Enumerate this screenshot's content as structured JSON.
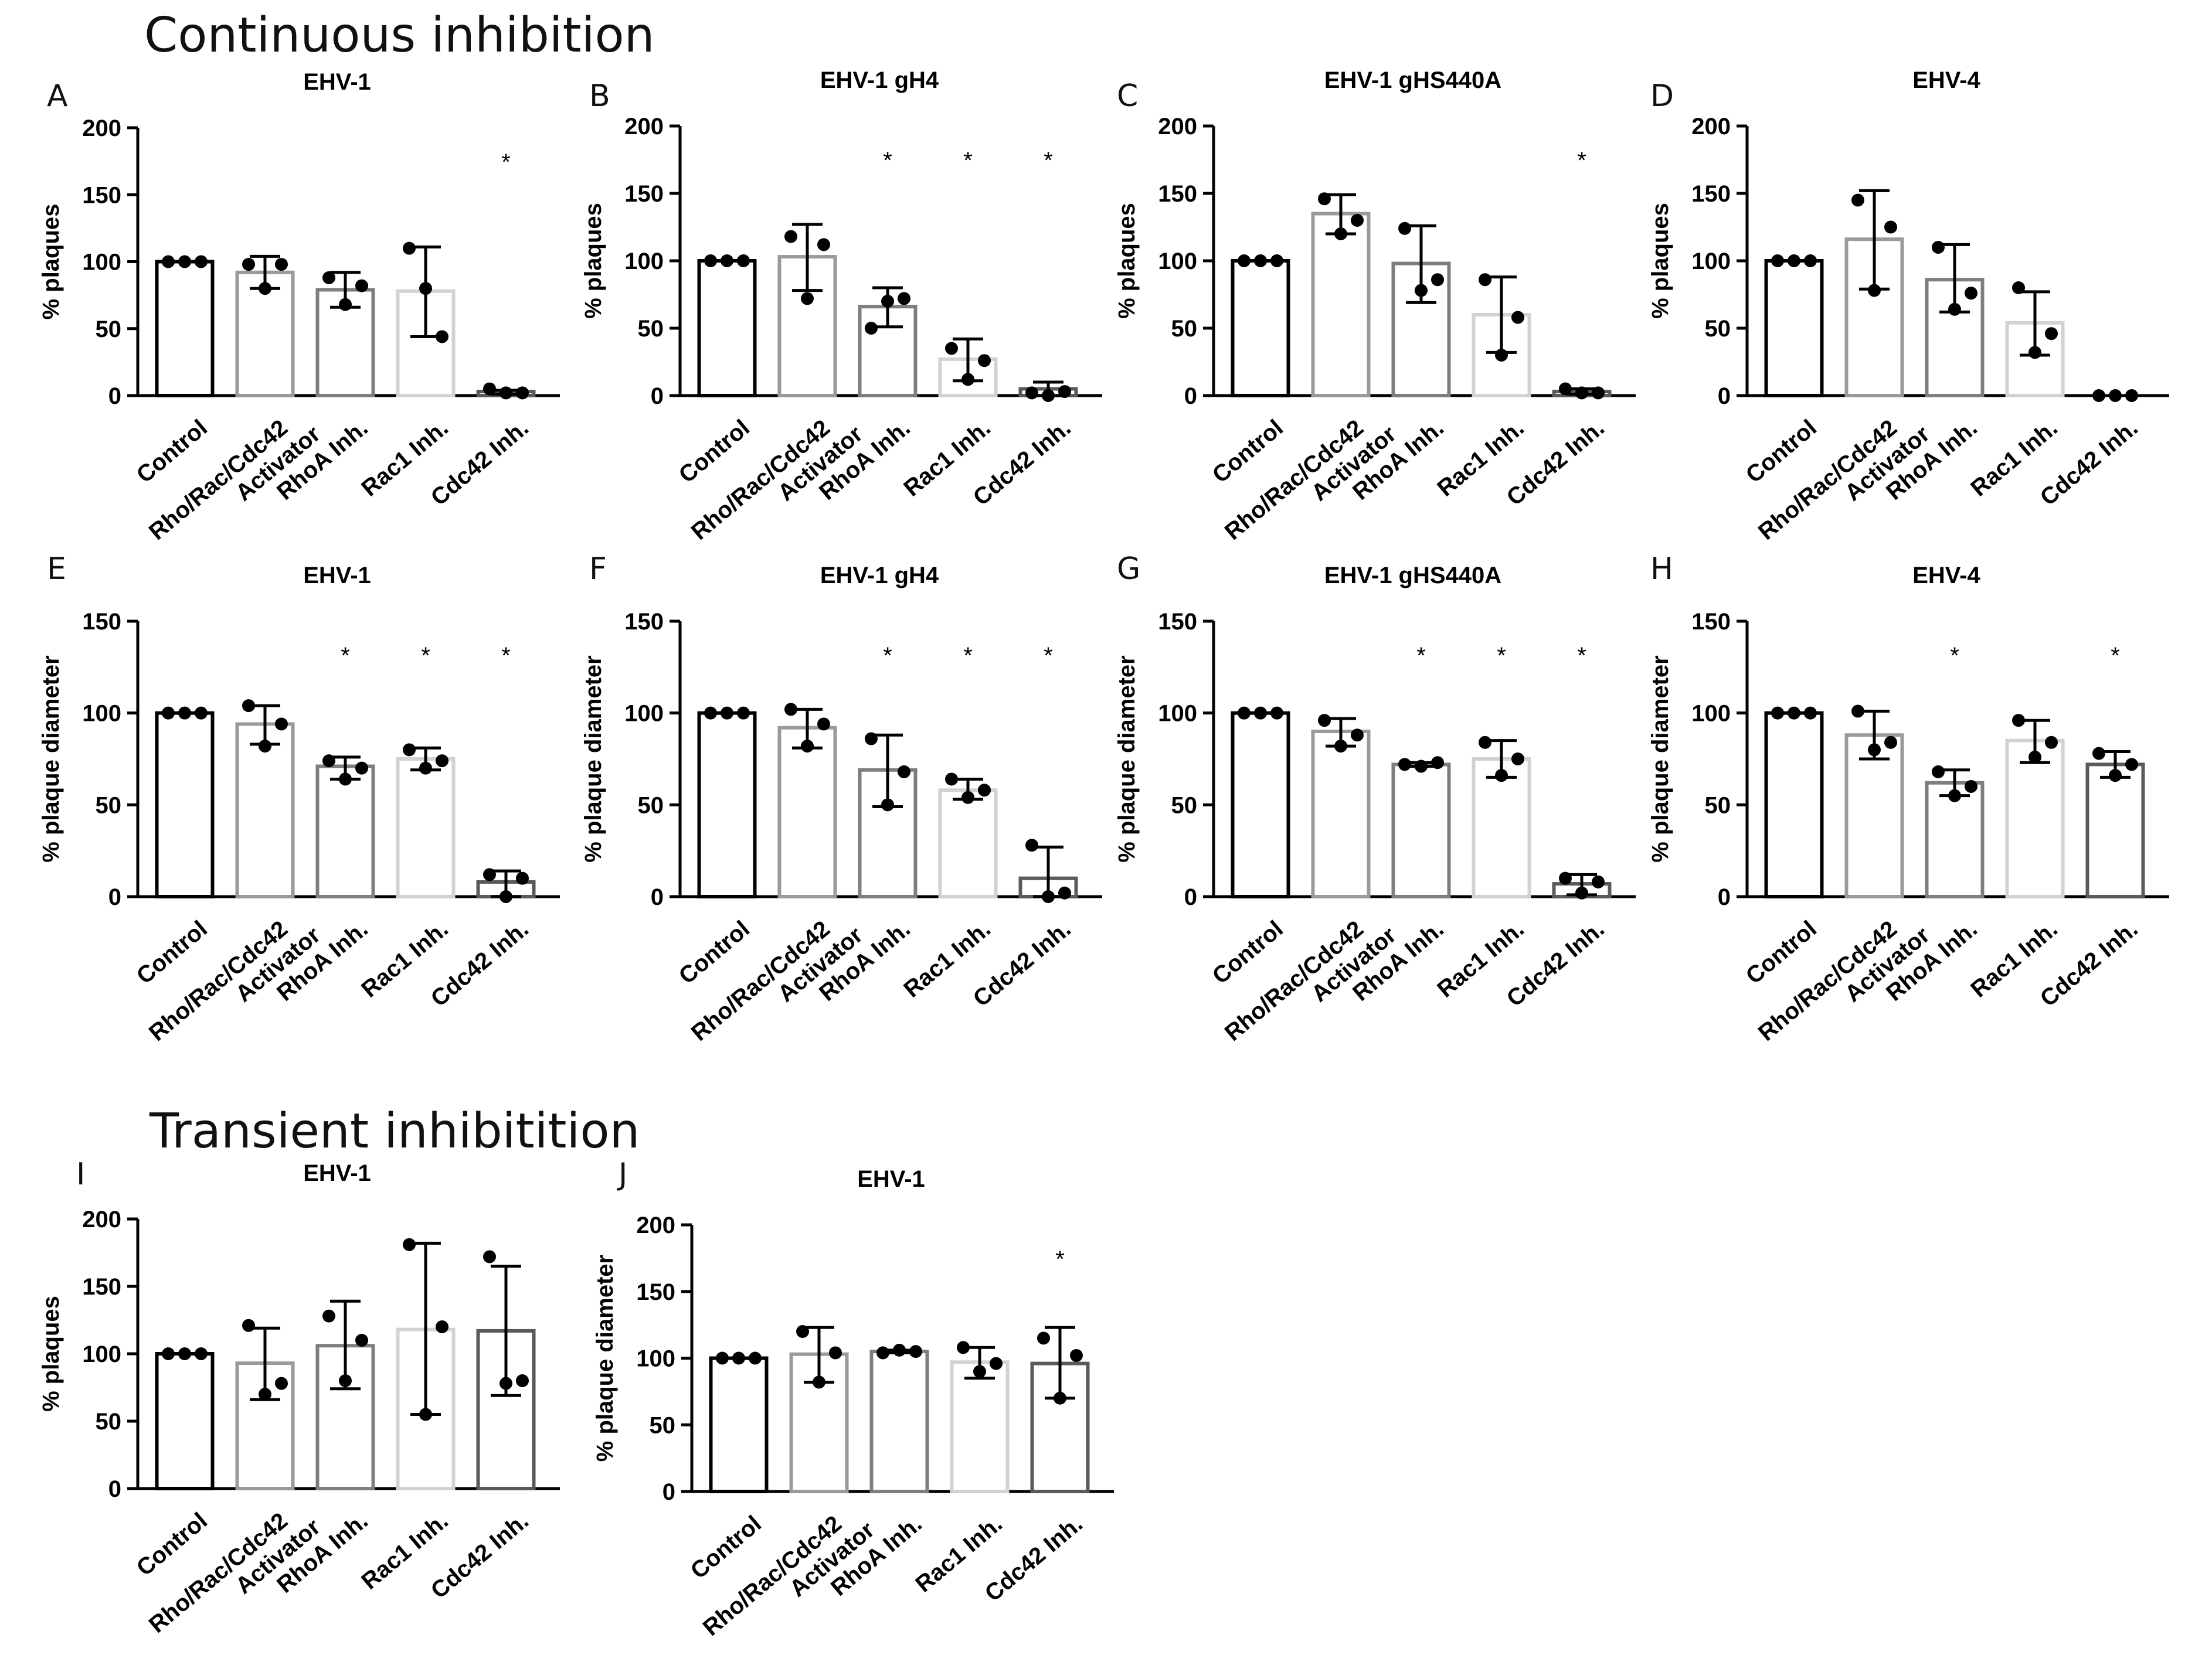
{
  "sections": {
    "continuous": "Continuous inhibition",
    "transient": "Transient inhibitition"
  },
  "colors": {
    "Control": "#000000",
    "Rho/Rac/Cdc42 Activator": "#9a9a9a",
    "RhoA Inh.": "#7e7e7e",
    "Rac1 Inh.": "#d2d2d2",
    "Cdc42 Inh.": "#5a5a5a",
    "axis": "#000000",
    "points": "#000000"
  },
  "chart_data": [
    {
      "panel": "A",
      "type": "bar",
      "title": "EHV-1",
      "ylabel": "% plaques",
      "ylim": [
        0,
        200
      ],
      "yticks": [
        "0",
        "50",
        "100",
        "150",
        "200"
      ],
      "categories": [
        "Control",
        "Rho/Rac/Cdc42 Activator",
        "RhoA Inh.",
        "Rac1 Inh.",
        "Cdc42 Inh."
      ],
      "values": [
        100,
        92,
        79,
        78,
        3
      ],
      "error": [
        [
          100,
          100
        ],
        [
          80,
          104
        ],
        [
          66,
          92
        ],
        [
          44,
          111
        ],
        [
          1,
          4
        ]
      ],
      "points": [
        [
          100,
          100,
          100
        ],
        [
          98,
          80,
          98
        ],
        [
          88,
          68,
          82
        ],
        [
          110,
          80,
          44
        ],
        [
          5,
          2,
          2
        ]
      ],
      "significance": [
        "",
        "",
        "",
        "",
        "*"
      ]
    },
    {
      "panel": "B",
      "type": "bar",
      "title": "EHV-1 gH4",
      "ylabel": "% plaques",
      "ylim": [
        0,
        200
      ],
      "yticks": [
        "0",
        "50",
        "100",
        "150",
        "200"
      ],
      "categories": [
        "Control",
        "Rho/Rac/Cdc42 Activator",
        "RhoA Inh.",
        "Rac1 Inh.",
        "Cdc42 Inh."
      ],
      "values": [
        100,
        103,
        66,
        27,
        5
      ],
      "error": [
        [
          100,
          100
        ],
        [
          78,
          127
        ],
        [
          51,
          80
        ],
        [
          11,
          42
        ],
        [
          0,
          10
        ]
      ],
      "points": [
        [
          100,
          100,
          100
        ],
        [
          118,
          72,
          112
        ],
        [
          50,
          70,
          72
        ],
        [
          35,
          12,
          26
        ],
        [
          2,
          0,
          3
        ]
      ],
      "significance": [
        "",
        "",
        "*",
        "*",
        "*"
      ]
    },
    {
      "panel": "C",
      "type": "bar",
      "title": "EHV-1 gHS440A",
      "ylabel": "% plaques",
      "ylim": [
        0,
        200
      ],
      "yticks": [
        "0",
        "50",
        "100",
        "150",
        "200"
      ],
      "categories": [
        "Control",
        "Rho/Rac/Cdc42 Activator",
        "RhoA Inh.",
        "Rac1 Inh.",
        "Cdc42 Inh."
      ],
      "values": [
        100,
        135,
        98,
        60,
        3
      ],
      "error": [
        [
          100,
          100
        ],
        [
          120,
          149
        ],
        [
          69,
          126
        ],
        [
          32,
          88
        ],
        [
          1,
          5
        ]
      ],
      "points": [
        [
          100,
          100,
          100
        ],
        [
          146,
          120,
          130
        ],
        [
          124,
          78,
          86
        ],
        [
          86,
          30,
          58
        ],
        [
          5,
          2,
          2
        ]
      ],
      "significance": [
        "",
        "",
        "",
        "",
        "*"
      ]
    },
    {
      "panel": "D",
      "type": "bar",
      "title": "EHV-4",
      "ylabel": "% plaques",
      "ylim": [
        0,
        200
      ],
      "yticks": [
        "0",
        "50",
        "100",
        "150",
        "200"
      ],
      "categories": [
        "Control",
        "Rho/Rac/Cdc42 Activator",
        "RhoA Inh.",
        "Rac1 Inh.",
        "Cdc42 Inh."
      ],
      "values": [
        100,
        116,
        86,
        54,
        0
      ],
      "error": [
        [
          100,
          100
        ],
        [
          79,
          152
        ],
        [
          62,
          112
        ],
        [
          30,
          77
        ],
        [
          0,
          0
        ]
      ],
      "points": [
        [
          100,
          100,
          100
        ],
        [
          145,
          78,
          125
        ],
        [
          110,
          64,
          76
        ],
        [
          80,
          32,
          46
        ],
        [
          0,
          0,
          0
        ]
      ],
      "significance": [
        "",
        "",
        "",
        "",
        ""
      ]
    },
    {
      "panel": "E",
      "type": "bar",
      "title": "EHV-1",
      "ylabel": "% plaque diameter",
      "ylim": [
        0,
        150
      ],
      "yticks": [
        "0",
        "50",
        "100",
        "150"
      ],
      "categories": [
        "Control",
        "Rho/Rac/Cdc42 Activator",
        "RhoA Inh.",
        "Rac1 Inh.",
        "Cdc42 Inh."
      ],
      "values": [
        100,
        94,
        71,
        75,
        8
      ],
      "error": [
        [
          100,
          100
        ],
        [
          83,
          104
        ],
        [
          64,
          76
        ],
        [
          69,
          81
        ],
        [
          0,
          14
        ]
      ],
      "points": [
        [
          100,
          100,
          100
        ],
        [
          104,
          82,
          94
        ],
        [
          74,
          64,
          70
        ],
        [
          80,
          70,
          74
        ],
        [
          12,
          0,
          10
        ]
      ],
      "significance": [
        "",
        "",
        "*",
        "*",
        "*"
      ]
    },
    {
      "panel": "F",
      "type": "bar",
      "title": "EHV-1 gH4",
      "ylabel": "% plaque diameter",
      "ylim": [
        0,
        150
      ],
      "yticks": [
        "0",
        "50",
        "100",
        "150"
      ],
      "categories": [
        "Control",
        "Rho/Rac/Cdc42 Activator",
        "RhoA Inh.",
        "Rac1 Inh.",
        "Cdc42 Inh."
      ],
      "values": [
        100,
        92,
        69,
        58,
        10
      ],
      "error": [
        [
          100,
          100
        ],
        [
          81,
          102
        ],
        [
          49,
          88
        ],
        [
          53,
          64
        ],
        [
          0,
          27
        ]
      ],
      "points": [
        [
          100,
          100,
          100
        ],
        [
          102,
          82,
          94
        ],
        [
          86,
          50,
          68
        ],
        [
          64,
          54,
          58
        ],
        [
          28,
          0,
          2
        ]
      ],
      "significance": [
        "",
        "",
        "*",
        "*",
        "*"
      ]
    },
    {
      "panel": "G",
      "type": "bar",
      "title": "EHV-1 gHS440A",
      "ylabel": "% plaque diameter",
      "ylim": [
        0,
        150
      ],
      "yticks": [
        "0",
        "50",
        "100",
        "150"
      ],
      "categories": [
        "Control",
        "Rho/Rac/Cdc42 Activator",
        "RhoA Inh.",
        "Rac1 Inh.",
        "Cdc42 Inh."
      ],
      "values": [
        100,
        90,
        72,
        75,
        7
      ],
      "error": [
        [
          100,
          100
        ],
        [
          82,
          97
        ],
        [
          71,
          73
        ],
        [
          65,
          85
        ],
        [
          1,
          12
        ]
      ],
      "points": [
        [
          100,
          100,
          100
        ],
        [
          96,
          82,
          88
        ],
        [
          72,
          71,
          73
        ],
        [
          84,
          66,
          75
        ],
        [
          10,
          2,
          8
        ]
      ],
      "significance": [
        "",
        "",
        "*",
        "*",
        "*"
      ]
    },
    {
      "panel": "H",
      "type": "bar",
      "title": "EHV-4",
      "ylabel": "% plaque diameter",
      "ylim": [
        0,
        150
      ],
      "yticks": [
        "0",
        "50",
        "100",
        "150"
      ],
      "categories": [
        "Control",
        "Rho/Rac/Cdc42 Activator",
        "RhoA Inh.",
        "Rac1 Inh.",
        "Cdc42 Inh."
      ],
      "values": [
        100,
        88,
        62,
        85,
        72
      ],
      "error": [
        [
          100,
          100
        ],
        [
          75,
          101
        ],
        [
          55,
          69
        ],
        [
          73,
          96
        ],
        [
          65,
          79
        ]
      ],
      "points": [
        [
          100,
          100,
          100
        ],
        [
          101,
          80,
          84
        ],
        [
          68,
          55,
          60
        ],
        [
          96,
          76,
          84
        ],
        [
          78,
          66,
          72
        ]
      ],
      "significance": [
        "",
        "",
        "*",
        "",
        "*"
      ]
    },
    {
      "panel": "I",
      "type": "bar",
      "title": "EHV-1",
      "ylabel": "% plaques",
      "ylim": [
        0,
        200
      ],
      "yticks": [
        "0",
        "50",
        "100",
        "150",
        "200"
      ],
      "categories": [
        "Control",
        "Rho/Rac/Cdc42 Activator",
        "RhoA Inh.",
        "Rac1 Inh.",
        "Cdc42 Inh."
      ],
      "values": [
        100,
        93,
        106,
        118,
        117
      ],
      "error": [
        [
          100,
          100
        ],
        [
          66,
          119
        ],
        [
          74,
          139
        ],
        [
          55,
          182
        ],
        [
          69,
          165
        ]
      ],
      "points": [
        [
          100,
          100,
          100
        ],
        [
          121,
          70,
          78
        ],
        [
          128,
          80,
          110
        ],
        [
          181,
          55,
          120
        ],
        [
          172,
          78,
          80
        ]
      ],
      "significance": [
        "",
        "",
        "",
        "",
        ""
      ]
    },
    {
      "panel": "J",
      "type": "bar",
      "title": "EHV-1",
      "ylabel": "% plaque diameter",
      "ylim": [
        0,
        200
      ],
      "yticks": [
        "0",
        "50",
        "100",
        "150",
        "200"
      ],
      "categories": [
        "Control",
        "Rho/Rac/Cdc42 Activator",
        "RhoA Inh.",
        "Rac1 Inh.",
        "Cdc42 Inh."
      ],
      "values": [
        100,
        103,
        105,
        97,
        96
      ],
      "error": [
        [
          100,
          100
        ],
        [
          82,
          123
        ],
        [
          104,
          106
        ],
        [
          85,
          108
        ],
        [
          70,
          123
        ]
      ],
      "points": [
        [
          100,
          100,
          100
        ],
        [
          120,
          82,
          104
        ],
        [
          104,
          106,
          105
        ],
        [
          108,
          90,
          96
        ],
        [
          115,
          70,
          102
        ]
      ],
      "significance": [
        "",
        "",
        "",
        "",
        "*"
      ]
    }
  ]
}
